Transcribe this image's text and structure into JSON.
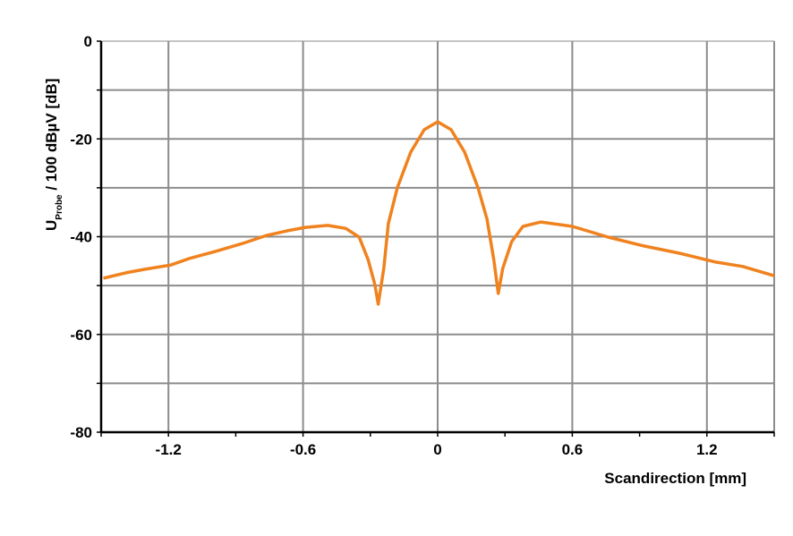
{
  "chart_data": {
    "type": "line",
    "title": "",
    "xlabel": "Scandirection [mm]",
    "ylabel": {
      "main": "U",
      "subscript": "Probe",
      "rest": " / 100 dBµV [dB]"
    },
    "xlim": [
      -1.5,
      1.5
    ],
    "ylim": [
      -80,
      0
    ],
    "xticks": [
      -1.2,
      -0.6,
      0,
      0.6,
      1.2
    ],
    "xtick_labels": [
      "-1.2",
      "-0.6",
      "0",
      "0.6",
      "1.2"
    ],
    "yticks": [
      0,
      -20,
      -40,
      -60,
      -80
    ],
    "ytick_labels": [
      "0",
      "-20",
      "-40",
      "-60",
      "-80"
    ],
    "grid": true,
    "line_color": "#f0821e",
    "series": [
      {
        "x": [
          -1.49,
          -1.39,
          -1.31,
          -1.19,
          -1.11,
          -0.99,
          -0.87,
          -0.76,
          -0.67,
          -0.59,
          -0.49,
          -0.41,
          -0.35,
          -0.31,
          -0.28,
          -0.265,
          -0.24,
          -0.22,
          -0.18,
          -0.12,
          -0.06,
          0,
          0.06,
          0.12,
          0.18,
          0.22,
          0.25,
          0.27,
          0.29,
          0.33,
          0.38,
          0.46,
          0.6,
          0.76,
          0.92,
          1.08,
          1.24,
          1.36,
          1.5
        ],
        "y": [
          -48.5,
          -47.4,
          -46.7,
          -45.8,
          -44.5,
          -43.0,
          -41.4,
          -39.7,
          -38.8,
          -38.1,
          -37.7,
          -38.3,
          -40.1,
          -44.7,
          -49.8,
          -53.8,
          -46.5,
          -37.3,
          -30.0,
          -22.7,
          -18.1,
          -16.5,
          -18.1,
          -22.7,
          -30.0,
          -36.4,
          -44.7,
          -51.6,
          -46.5,
          -41.0,
          -37.9,
          -37.0,
          -37.9,
          -40.1,
          -41.9,
          -43.4,
          -45.2,
          -46.1,
          -48.0
        ]
      }
    ]
  }
}
